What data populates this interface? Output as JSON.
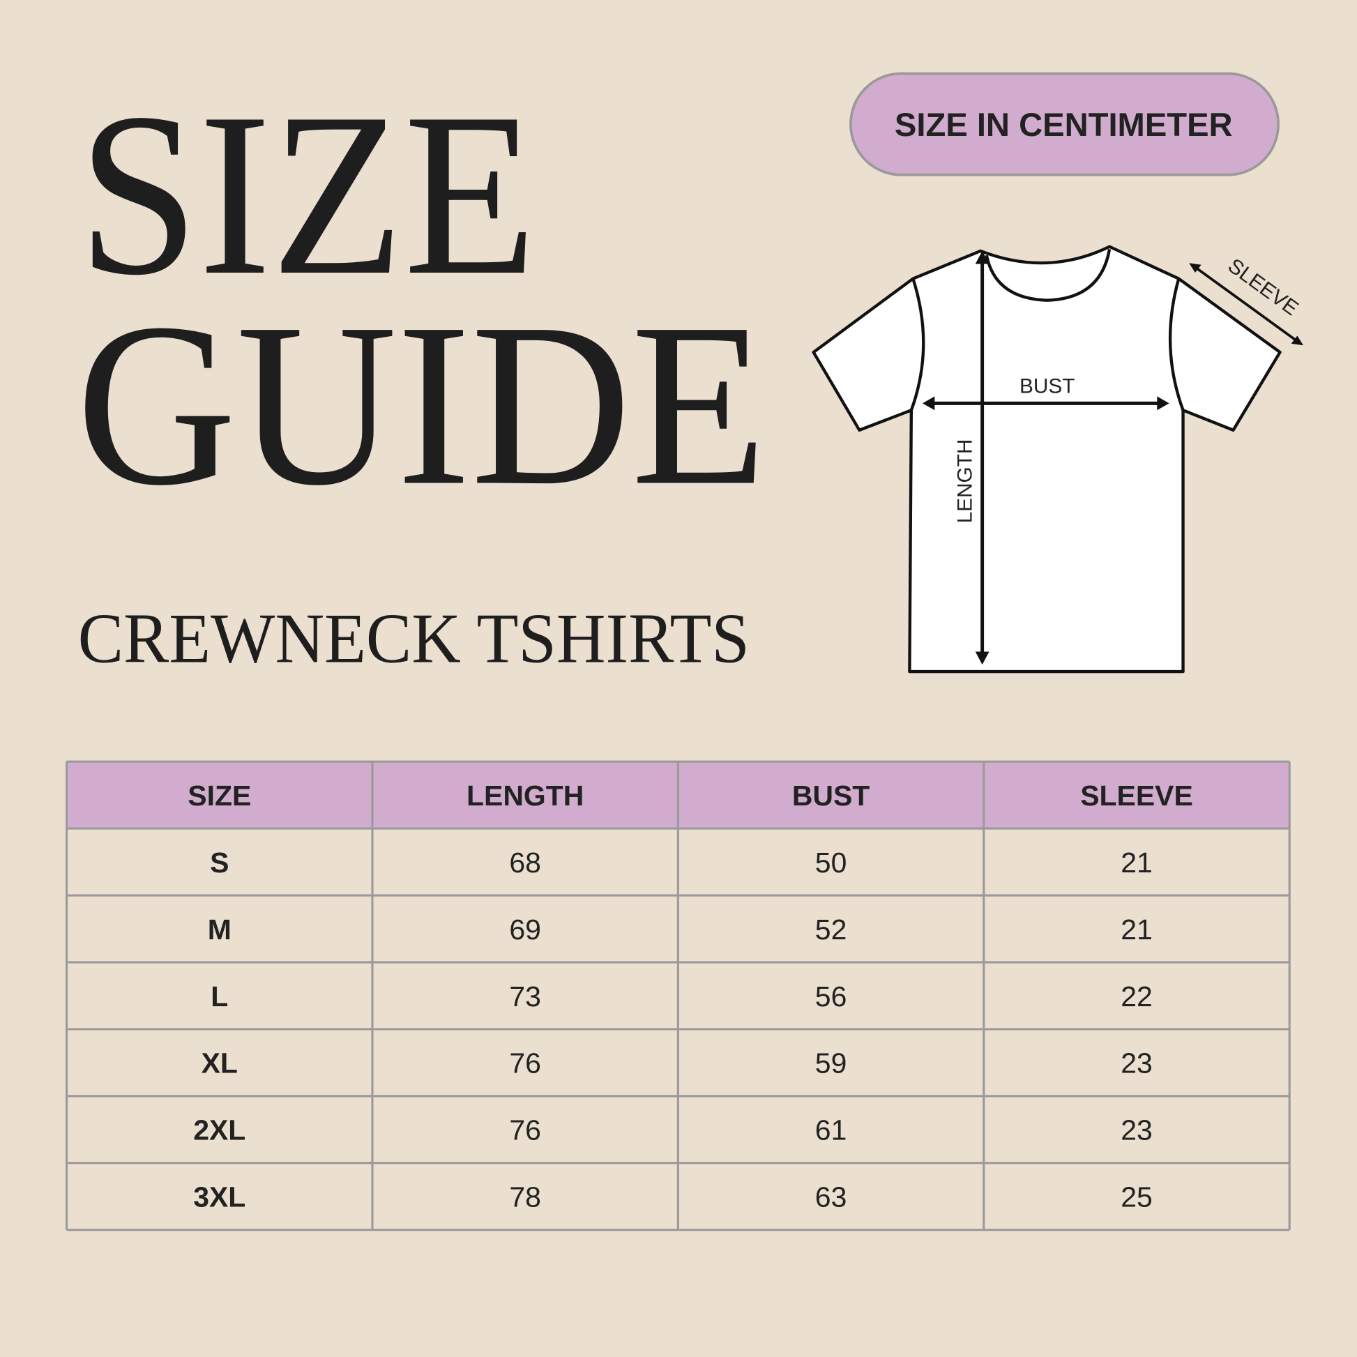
{
  "header": {
    "title": [
      "SIZE",
      "GUIDE"
    ],
    "subtitle": "CREWNECK TSHIRTS",
    "badge": "SIZE IN CENTIMETER"
  },
  "diagram": {
    "bust": "BUST",
    "length": "LENGTH",
    "sleeve": "SLEEVE"
  },
  "table": {
    "columns": [
      "SIZE",
      "LENGTH",
      "BUST",
      "SLEEVE"
    ],
    "rows": [
      [
        "S",
        68,
        50,
        21
      ],
      [
        "M",
        69,
        52,
        21
      ],
      [
        "L",
        73,
        56,
        22
      ],
      [
        "XL",
        76,
        59,
        23
      ],
      [
        "2XL",
        76,
        61,
        23
      ],
      [
        "3XL",
        78,
        63,
        25
      ]
    ]
  }
}
